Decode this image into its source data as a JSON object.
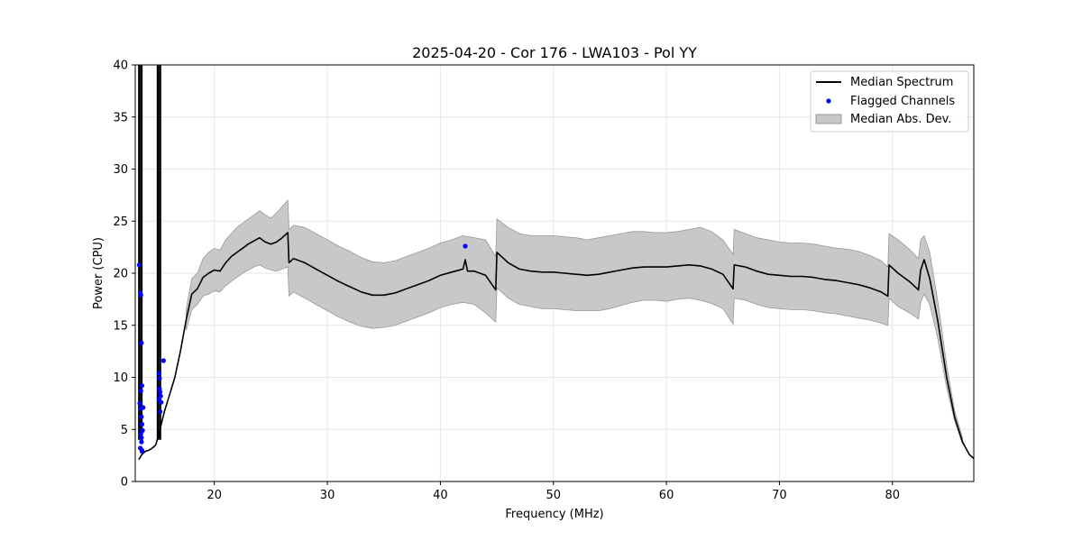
{
  "chart_data": {
    "type": "line",
    "title": "2025-04-20 - Cor 176 - LWA103 - Pol YY",
    "xlabel": "Frequency (MHz)",
    "ylabel": "Power (CPU)",
    "xlim": [
      13.0,
      87.2
    ],
    "ylim": [
      0,
      40
    ],
    "xticks": [
      20,
      30,
      40,
      50,
      60,
      70,
      80
    ],
    "yticks": [
      0,
      5,
      10,
      15,
      20,
      25,
      30,
      35,
      40
    ],
    "grid": true,
    "legend_position": "top-right",
    "colors": {
      "median_line": "#000000",
      "flagged_points": "#0000ff",
      "mad_band": "#c8c8c8",
      "mad_band_edge": "#999999",
      "grid": "#e6e6e6"
    },
    "series": [
      {
        "name": "Median Spectrum",
        "kind": "line",
        "x": [
          13.3,
          13.6,
          13.9,
          14.2,
          14.5,
          14.8,
          15.0,
          15.3,
          15.6,
          16.0,
          16.5,
          17.0,
          17.5,
          18.0,
          18.5,
          19.0,
          19.5,
          20.0,
          20.5,
          21.0,
          21.5,
          22.0,
          22.5,
          23.0,
          23.5,
          24.0,
          24.5,
          25.0,
          25.5,
          26.0,
          26.5,
          26.6,
          27.0,
          28.0,
          29.0,
          30.0,
          31.0,
          32.0,
          33.0,
          34.0,
          35.0,
          36.0,
          37.0,
          38.0,
          39.0,
          40.0,
          41.0,
          42.0,
          42.2,
          42.4,
          43.0,
          44.0,
          44.9,
          45.0,
          46.0,
          47.0,
          48.0,
          49.0,
          50.0,
          51.0,
          52.0,
          53.0,
          54.0,
          55.0,
          56.0,
          57.0,
          58.0,
          59.0,
          60.0,
          61.0,
          62.0,
          63.0,
          64.0,
          65.0,
          65.9,
          66.0,
          67.0,
          68.0,
          69.0,
          70.0,
          71.0,
          72.0,
          73.0,
          74.0,
          75.0,
          76.0,
          77.0,
          78.0,
          79.0,
          79.6,
          79.7,
          80.5,
          81.5,
          82.3,
          82.5,
          82.8,
          83.3,
          84.0,
          84.8,
          85.5,
          86.2,
          86.8,
          87.2
        ],
        "y": [
          2.1,
          2.6,
          2.9,
          3.0,
          3.2,
          3.5,
          4.2,
          5.5,
          6.8,
          8.2,
          10.0,
          12.5,
          15.5,
          18.0,
          18.5,
          19.6,
          20.0,
          20.3,
          20.2,
          21.0,
          21.6,
          22.0,
          22.4,
          22.8,
          23.1,
          23.4,
          23.0,
          22.8,
          23.0,
          23.4,
          23.9,
          21.0,
          21.4,
          21.0,
          20.4,
          19.8,
          19.2,
          18.7,
          18.2,
          17.9,
          17.9,
          18.1,
          18.5,
          18.9,
          19.3,
          19.8,
          20.1,
          20.4,
          21.3,
          20.2,
          20.2,
          19.8,
          18.4,
          22.0,
          21.0,
          20.4,
          20.2,
          20.1,
          20.1,
          20.0,
          19.9,
          19.8,
          19.9,
          20.1,
          20.3,
          20.5,
          20.6,
          20.6,
          20.6,
          20.7,
          20.8,
          20.7,
          20.4,
          19.9,
          18.5,
          20.8,
          20.6,
          20.2,
          19.9,
          19.8,
          19.7,
          19.7,
          19.6,
          19.4,
          19.3,
          19.1,
          18.9,
          18.6,
          18.2,
          17.8,
          20.8,
          20.0,
          19.2,
          18.4,
          20.3,
          21.3,
          19.5,
          15.5,
          10.0,
          6.2,
          3.8,
          2.6,
          2.2
        ],
        "spikes": [
          {
            "x": 13.35,
            "y_top": 40
          },
          {
            "x": 13.55,
            "y_top": 40
          },
          {
            "x": 15.0,
            "y_top": 40
          },
          {
            "x": 15.2,
            "y_top": 40
          }
        ]
      },
      {
        "name": "Flagged Channels",
        "kind": "scatter",
        "x": [
          13.35,
          13.45,
          13.5,
          13.55,
          13.6,
          13.4,
          13.5,
          13.55,
          13.6,
          13.65,
          13.5,
          13.55,
          13.6,
          13.45,
          13.7,
          13.5,
          13.6,
          13.55,
          15.1,
          15.15,
          15.2,
          15.25,
          15.1,
          15.2,
          15.3,
          15.15,
          15.5,
          42.2
        ],
        "y": [
          20.8,
          18.1,
          17.9,
          13.3,
          9.2,
          7.5,
          7.0,
          6.2,
          5.5,
          4.9,
          4.6,
          3.8,
          3.0,
          3.2,
          7.1,
          8.7,
          2.9,
          4.2,
          10.4,
          9.9,
          8.6,
          8.2,
          7.9,
          6.7,
          7.6,
          8.9,
          11.6,
          22.6
        ]
      },
      {
        "name": "Median Abs. Dev.",
        "kind": "band",
        "x": [
          17.5,
          18.0,
          18.5,
          19.0,
          19.5,
          20.0,
          20.5,
          21.0,
          21.5,
          22.0,
          22.5,
          23.0,
          23.5,
          24.0,
          24.5,
          25.0,
          25.5,
          26.0,
          26.5,
          26.6,
          27.0,
          28.0,
          29.0,
          30.0,
          31.0,
          32.0,
          33.0,
          34.0,
          35.0,
          36.0,
          37.0,
          38.0,
          39.0,
          40.0,
          41.0,
          42.0,
          43.0,
          44.0,
          44.9,
          45.0,
          46.0,
          47.0,
          48.0,
          49.0,
          50.0,
          51.0,
          52.0,
          53.0,
          54.0,
          55.0,
          56.0,
          57.0,
          58.0,
          59.0,
          60.0,
          61.0,
          62.0,
          63.0,
          64.0,
          65.0,
          65.9,
          66.0,
          67.0,
          68.0,
          69.0,
          70.0,
          71.0,
          72.0,
          73.0,
          74.0,
          75.0,
          76.0,
          77.0,
          78.0,
          79.0,
          79.6,
          79.7,
          80.5,
          81.5,
          82.3,
          82.5,
          82.8,
          83.3,
          84.0,
          84.8,
          85.5,
          86.2
        ],
        "low": [
          14.5,
          16.5,
          17.0,
          17.8,
          18.0,
          18.3,
          18.2,
          18.8,
          19.2,
          19.6,
          20.0,
          20.3,
          20.6,
          20.8,
          20.5,
          20.3,
          20.2,
          20.4,
          20.6,
          17.8,
          18.2,
          17.6,
          17.0,
          16.4,
          15.8,
          15.3,
          14.9,
          14.7,
          14.8,
          15.0,
          15.4,
          15.8,
          16.2,
          16.7,
          17.0,
          17.2,
          17.0,
          16.2,
          15.3,
          18.6,
          17.6,
          17.0,
          16.8,
          16.6,
          16.6,
          16.5,
          16.4,
          16.4,
          16.4,
          16.6,
          16.9,
          17.2,
          17.4,
          17.4,
          17.3,
          17.5,
          17.6,
          17.4,
          17.1,
          16.6,
          15.1,
          17.6,
          17.4,
          17.0,
          16.7,
          16.6,
          16.5,
          16.5,
          16.4,
          16.2,
          16.1,
          15.9,
          15.7,
          15.5,
          15.2,
          15.0,
          17.6,
          16.8,
          16.2,
          15.6,
          17.2,
          18.0,
          17.0,
          13.8,
          9.0,
          5.8,
          3.6
        ],
        "high": [
          16.5,
          19.5,
          20.0,
          21.4,
          22.0,
          22.4,
          22.2,
          23.2,
          23.8,
          24.4,
          24.8,
          25.2,
          25.6,
          26.0,
          25.6,
          25.3,
          25.8,
          26.4,
          27.0,
          24.2,
          24.6,
          24.4,
          23.8,
          23.2,
          22.6,
          22.1,
          21.5,
          21.1,
          21.0,
          21.2,
          21.6,
          22.0,
          22.4,
          22.9,
          23.2,
          23.6,
          23.4,
          23.2,
          21.6,
          25.2,
          24.4,
          23.8,
          23.6,
          23.6,
          23.6,
          23.5,
          23.4,
          23.2,
          23.4,
          23.6,
          23.8,
          24.0,
          24.0,
          23.9,
          23.9,
          24.0,
          24.2,
          24.4,
          24.0,
          23.2,
          21.8,
          24.2,
          23.8,
          23.4,
          23.2,
          23.0,
          22.9,
          22.9,
          22.8,
          22.6,
          22.4,
          22.3,
          22.1,
          21.7,
          21.2,
          20.6,
          23.8,
          23.2,
          22.3,
          21.4,
          23.2,
          23.6,
          22.0,
          17.4,
          11.2,
          6.8,
          4.2
        ]
      }
    ],
    "legend": [
      {
        "label": "Median Spectrum",
        "kind": "line"
      },
      {
        "label": "Flagged Channels",
        "kind": "scatter"
      },
      {
        "label": "Median Abs. Dev.",
        "kind": "band"
      }
    ]
  }
}
